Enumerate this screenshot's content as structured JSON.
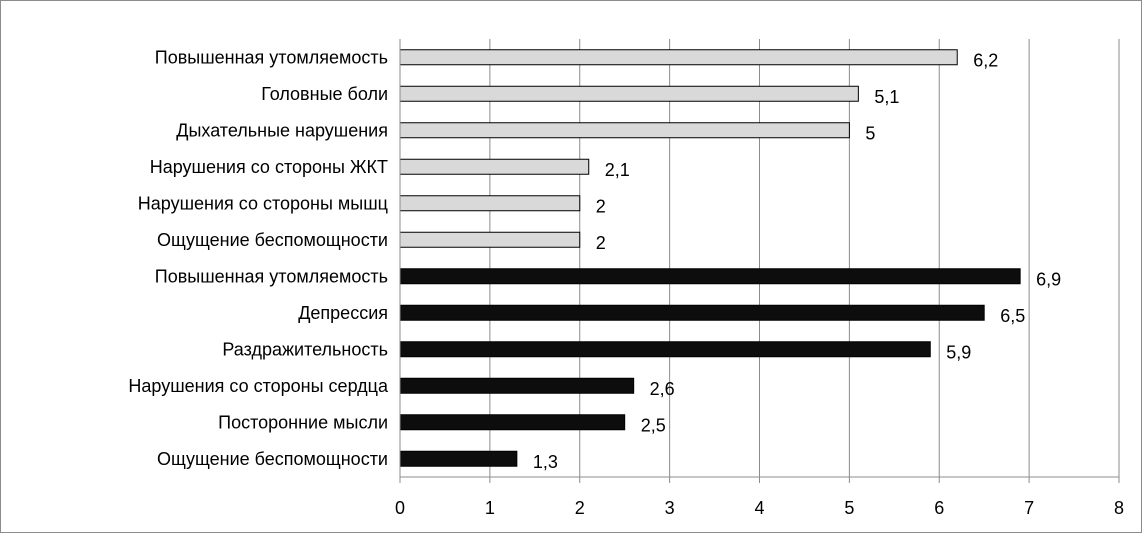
{
  "chart_data": {
    "type": "bar",
    "orientation": "horizontal",
    "title": "",
    "xlabel": "",
    "ylabel": "",
    "xlim": [
      0,
      8
    ],
    "x_ticks": [
      "0",
      "1",
      "2",
      "3",
      "4",
      "5",
      "6",
      "7",
      "8"
    ],
    "grid": "vertical",
    "legend": "none",
    "categories": [
      "Повышенная утомляемость",
      "Головные боли",
      "Дыхательные нарушения",
      "Нарушения со стороны ЖКТ",
      "Нарушения со стороны мышц",
      "Ощущение беспомощности",
      "Повышенная утомляемость",
      "Депрессия",
      "Раздражительность",
      "Нарушения со стороны сердца",
      "Посторонние мысли",
      "Ощущение беспомощности"
    ],
    "values": [
      6.2,
      5.1,
      5,
      2.1,
      2,
      2,
      6.9,
      6.5,
      5.9,
      2.6,
      2.5,
      1.3
    ],
    "value_labels": [
      "6,2",
      "5,1",
      "5",
      "2,1",
      "2",
      "2",
      "6,9",
      "6,5",
      "5,9",
      "2,6",
      "2,5",
      "1,3"
    ],
    "bar_colors": [
      "#d9d9d9",
      "#d9d9d9",
      "#d9d9d9",
      "#d9d9d9",
      "#d9d9d9",
      "#d9d9d9",
      "#0d0d0d",
      "#0d0d0d",
      "#0d0d0d",
      "#0d0d0d",
      "#0d0d0d",
      "#0d0d0d"
    ],
    "bar_outline": "#000000",
    "grid_color": "#8c8c8c"
  }
}
